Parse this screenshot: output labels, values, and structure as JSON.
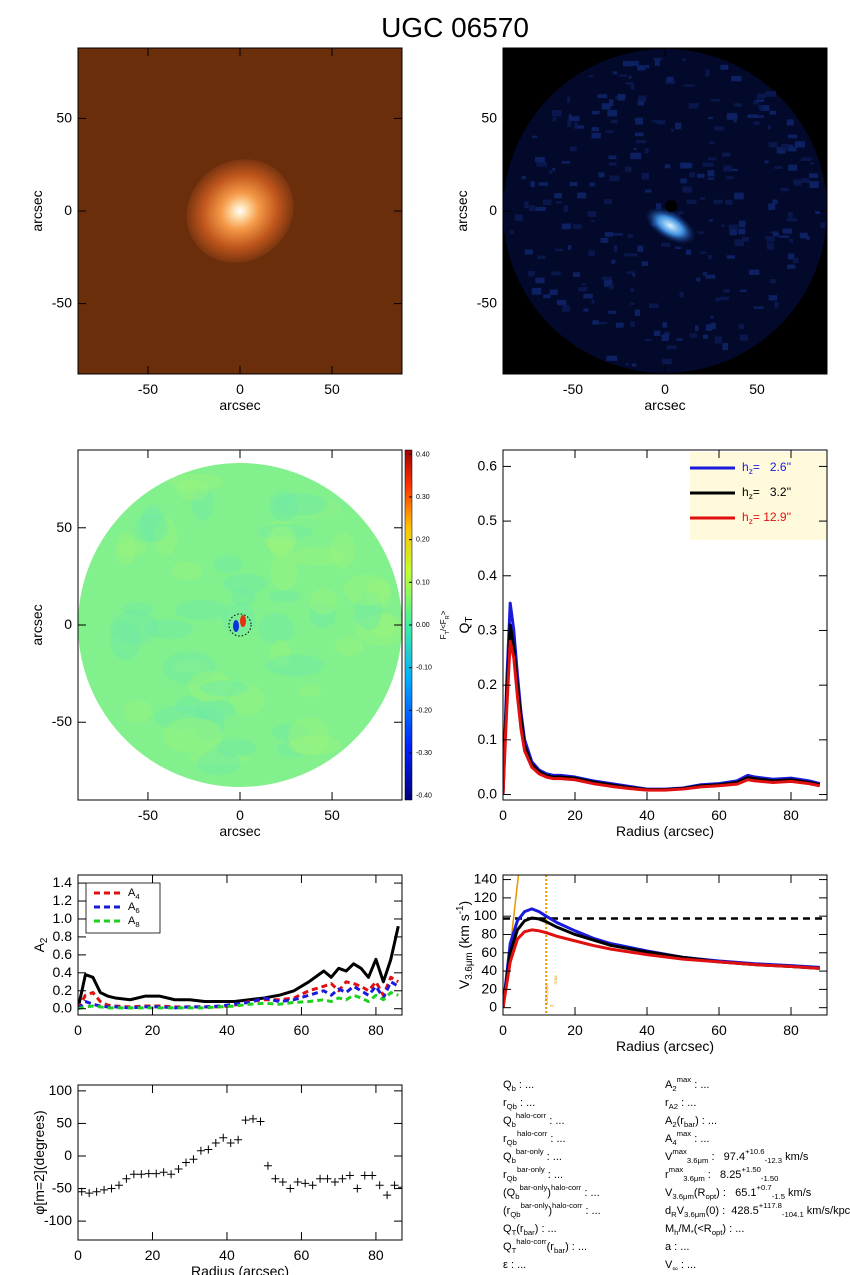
{
  "title": "UGC 06570",
  "chart_data": [
    {
      "type": "image",
      "colormap": "copper",
      "xlabel": "arcsec",
      "ylabel": "arcsec",
      "xlim": [
        -88,
        88
      ],
      "ylim": [
        -88,
        88
      ],
      "xticks": [
        -50,
        0,
        50
      ],
      "yticks": [
        -50,
        0,
        50
      ]
    },
    {
      "type": "image",
      "colormap": "blue",
      "xlabel": "arcsec",
      "ylabel": "arcsec",
      "xlim": [
        -88,
        88
      ],
      "ylim": [
        -88,
        88
      ],
      "xticks": [
        -50,
        0,
        50
      ],
      "yticks": [
        -50,
        0,
        50
      ]
    },
    {
      "type": "image",
      "colormap": "jet",
      "xlabel": "arcsec",
      "ylabel": "arcsec",
      "xlim": [
        -88,
        88
      ],
      "ylim": [
        -90,
        90
      ],
      "xticks": [
        -50,
        0,
        50
      ],
      "yticks": [
        -50,
        0,
        50
      ],
      "colorbar": {
        "label": "F_T/<F_R>",
        "lim": [
          -0.41,
          0.41
        ],
        "ticks": [
          {
            "value": 0.4,
            "label": "0.40"
          },
          {
            "value": 0.3,
            "label": "0.30"
          },
          {
            "value": 0.2,
            "label": "0.20"
          },
          {
            "value": 0.1,
            "label": "0.10"
          },
          {
            "value": 0,
            "label": "0.00"
          },
          {
            "value": -0.1,
            "label": "-0.10"
          },
          {
            "value": -0.2,
            "label": "-0.20"
          },
          {
            "value": -0.3,
            "label": "-0.30"
          },
          {
            "value": -0.4,
            "label": "-0.40"
          }
        ]
      }
    },
    {
      "type": "line",
      "xlabel": "Radius (arcsec)",
      "ylabel": "Q_T",
      "legend": "upper right",
      "xlim": [
        0,
        90
      ],
      "ylim": [
        -0.01,
        0.63
      ],
      "xticks": [
        0,
        20,
        40,
        60,
        80
      ],
      "yticks": [
        {
          "value": 0,
          "label": "0.0"
        },
        {
          "value": 0.1,
          "label": "0.1"
        },
        {
          "value": 0.2,
          "label": "0.2"
        },
        {
          "value": 0.3,
          "label": "0.3"
        },
        {
          "value": 0.4,
          "label": "0.4"
        },
        {
          "value": 0.5,
          "label": "0.5"
        },
        {
          "value": 0.6,
          "label": "0.6"
        }
      ],
      "x": [
        0,
        1,
        2,
        3,
        4,
        5,
        6,
        8,
        10,
        12,
        14,
        16,
        20,
        25,
        30,
        35,
        40,
        45,
        50,
        55,
        60,
        65,
        68,
        70,
        75,
        80,
        85,
        88
      ],
      "series": [
        {
          "name": "h_z=   2.6''",
          "color": "#1a1adc",
          "values": [
            0,
            0.2,
            0.35,
            0.3,
            0.22,
            0.15,
            0.1,
            0.06,
            0.045,
            0.038,
            0.035,
            0.035,
            0.032,
            0.025,
            0.02,
            0.015,
            0.01,
            0.01,
            0.012,
            0.018,
            0.02,
            0.025,
            0.035,
            0.032,
            0.028,
            0.03,
            0.025,
            0.02
          ]
        },
        {
          "name": "h_z=   3.2''",
          "color": "#000000",
          "values": [
            0,
            0.18,
            0.31,
            0.27,
            0.2,
            0.14,
            0.09,
            0.055,
            0.042,
            0.035,
            0.032,
            0.032,
            0.03,
            0.023,
            0.018,
            0.013,
            0.009,
            0.009,
            0.011,
            0.016,
            0.018,
            0.022,
            0.031,
            0.029,
            0.025,
            0.027,
            0.022,
            0.018
          ]
        },
        {
          "name": "h_z= 12.9''",
          "color": "#e01010",
          "values": [
            0,
            0.15,
            0.28,
            0.25,
            0.18,
            0.12,
            0.08,
            0.05,
            0.038,
            0.032,
            0.029,
            0.029,
            0.027,
            0.02,
            0.015,
            0.011,
            0.008,
            0.008,
            0.01,
            0.014,
            0.016,
            0.019,
            0.027,
            0.025,
            0.022,
            0.024,
            0.02,
            0.016
          ]
        }
      ]
    },
    {
      "type": "line",
      "xlabel": "",
      "ylabel": "A_2",
      "legend": "upper left",
      "xlim": [
        0,
        87
      ],
      "ylim": [
        -0.07,
        1.49
      ],
      "xticks": [
        0,
        20,
        40,
        60,
        80
      ],
      "yticks": [
        {
          "value": 0,
          "label": "0.0"
        },
        {
          "value": 0.2,
          "label": "0.2"
        },
        {
          "value": 0.4,
          "label": "0.4"
        },
        {
          "value": 0.6,
          "label": "0.6"
        },
        {
          "value": 0.8,
          "label": "0.8"
        },
        {
          "value": 1,
          "label": "1.0"
        },
        {
          "value": 1.2,
          "label": "1.2"
        },
        {
          "value": 1.4,
          "label": "1.4"
        }
      ],
      "x": [
        0,
        2,
        4,
        6,
        8,
        10,
        14,
        18,
        22,
        26,
        30,
        34,
        38,
        42,
        46,
        50,
        54,
        58,
        62,
        66,
        68,
        70,
        72,
        74,
        76,
        78,
        80,
        82,
        84,
        86
      ],
      "series": [
        {
          "color": "#000000",
          "values": [
            0,
            0.38,
            0.35,
            0.18,
            0.14,
            0.12,
            0.1,
            0.14,
            0.14,
            0.1,
            0.1,
            0.08,
            0.08,
            0.08,
            0.1,
            0.12,
            0.15,
            0.2,
            0.3,
            0.42,
            0.35,
            0.45,
            0.42,
            0.5,
            0.45,
            0.35,
            0.55,
            0.3,
            0.55,
            0.92
          ]
        },
        {
          "name": "A_4",
          "color": "#e01010",
          "dashed": true,
          "values": [
            0,
            0.15,
            0.18,
            0.08,
            0.04,
            0.03,
            0.02,
            0.03,
            0.03,
            0.02,
            0.02,
            0.02,
            0.02,
            0.04,
            0.08,
            0.1,
            0.1,
            0.12,
            0.2,
            0.25,
            0.28,
            0.2,
            0.3,
            0.28,
            0.25,
            0.2,
            0.3,
            0.15,
            0.35,
            0.3
          ]
        },
        {
          "name": "A_6",
          "color": "#1a1adc",
          "dashed": true,
          "values": [
            0,
            0.08,
            0.05,
            0.03,
            0.02,
            0.02,
            0.01,
            0.02,
            0.02,
            0.01,
            0.02,
            0.02,
            0.03,
            0.05,
            0.07,
            0.12,
            0.08,
            0.1,
            0.15,
            0.2,
            0.15,
            0.22,
            0.18,
            0.25,
            0.2,
            0.15,
            0.25,
            0.12,
            0.3,
            0.25
          ]
        },
        {
          "name": "A_8",
          "color": "#20d020",
          "dashed": true,
          "values": [
            0,
            0.02,
            0.03,
            0.02,
            0.01,
            0.01,
            0.01,
            0.01,
            0.01,
            0.01,
            0.01,
            0.01,
            0.02,
            0.03,
            0.05,
            0.06,
            0.05,
            0.07,
            0.08,
            0.1,
            0.08,
            0.12,
            0.1,
            0.15,
            0.12,
            0.08,
            0.15,
            0.1,
            0.18,
            0.15
          ]
        }
      ]
    },
    {
      "type": "line",
      "xlabel": "Radius (arcsec)",
      "ylabel": "V_{3.6μm} (km s^{-1})",
      "xlim": [
        0,
        90
      ],
      "ylim": [
        -8,
        145
      ],
      "xticks": [
        0,
        20,
        40,
        60,
        80
      ],
      "yticks": [
        0,
        20,
        40,
        60,
        80,
        100,
        120,
        140
      ],
      "hline": 97.4,
      "vline": 12,
      "vline_label": "r^{1/4R_{opt}}_{max}",
      "vline_color": "#e69500",
      "x": [
        0,
        2,
        4,
        6,
        8,
        10,
        12,
        15,
        20,
        25,
        30,
        40,
        50,
        60,
        70,
        80,
        88
      ],
      "series": [
        {
          "color": "#e69500",
          "thin": true,
          "values": [
            0,
            65,
            135,
            200,
            null,
            null,
            null,
            null,
            null,
            null,
            null,
            null,
            null,
            null,
            null,
            null,
            null
          ]
        },
        {
          "color": "#1a1adc",
          "values": [
            0,
            70,
            95,
            105,
            108,
            105,
            100,
            93,
            84,
            76,
            70,
            62,
            55,
            51,
            48,
            46,
            44
          ]
        },
        {
          "color": "#000000",
          "values": [
            0,
            60,
            85,
            95,
            98,
            97,
            94,
            88,
            80,
            74,
            68,
            61,
            55,
            50,
            47,
            45,
            43
          ]
        },
        {
          "color": "#e01010",
          "values": [
            0,
            50,
            75,
            83,
            85,
            84,
            82,
            78,
            73,
            68,
            64,
            58,
            53,
            50,
            47,
            45,
            43
          ]
        }
      ]
    },
    {
      "type": "scatter",
      "xlabel": "Radius (arcsec)",
      "ylabel": "φ[m=2](degrees)",
      "xlim": [
        0,
        87
      ],
      "ylim": [
        -129,
        109
      ],
      "xticks": [
        0,
        20,
        40,
        60,
        80
      ],
      "yticks": [
        -100,
        -50,
        0,
        50,
        100
      ],
      "x": [
        1,
        3,
        5,
        7,
        9,
        11,
        13,
        15,
        17,
        19,
        21,
        23,
        25,
        27,
        29,
        31,
        33,
        35,
        37,
        39,
        41,
        43,
        45,
        47,
        49,
        51,
        53,
        55,
        57,
        59,
        61,
        63,
        65,
        67,
        69,
        71,
        73,
        75,
        77,
        79,
        81,
        83,
        85,
        87
      ],
      "values": [
        -55,
        -57,
        -55,
        -52,
        -50,
        -45,
        -35,
        -28,
        -28,
        -27,
        -27,
        -25,
        -28,
        -20,
        -10,
        -5,
        8,
        10,
        20,
        28,
        20,
        25,
        55,
        57,
        53,
        -15,
        -35,
        -40,
        -50,
        -40,
        -42,
        -45,
        -35,
        -35,
        -40,
        -35,
        -30,
        -50,
        -30,
        -30,
        -45,
        -60,
        -45,
        -48
      ]
    }
  ],
  "parameters": {
    "left": [
      "Q_b : ...",
      "r_{Qb} : ...",
      "Q_b^{halo-corr} : ...",
      "r_{Qb}^{halo-corr} : ...",
      "Q_b^{bar-only} : ...",
      "r_{Qb}^{bar-only} : ...",
      "(Q_b^{bar-only})^{halo-corr} : ...",
      "(r_{Qb}^{bar-only})^{halo-corr} : ...",
      "Q_T(r_{bar}) : ...",
      "Q_T^{halo-corr}(r_{bar}) : ...",
      "ε : ..."
    ],
    "right": [
      "A_2^{max} : ...",
      "r_{A2} : ...",
      "A_2(r_{bar}) : ...",
      "A_4^{max} : ...",
      "V^{max}_{3.6μm} :   97.4^{+10.6}_{-12.3} km/s",
      "r^{max}_{3.6μm} :   8.25^{+1.50}_{-1.50}",
      "V_{3.6μm}(R_{opt}) :   65.1^{+0.7}_{-1.5} km/s",
      "d_RV_{3.6μm}(0) :  428.5^{+117.8}_{-104.1} km/s/kpc",
      "M_h/M_*(<R_{opt}) : ...",
      "a : ...",
      "V_∞ : ..."
    ]
  }
}
